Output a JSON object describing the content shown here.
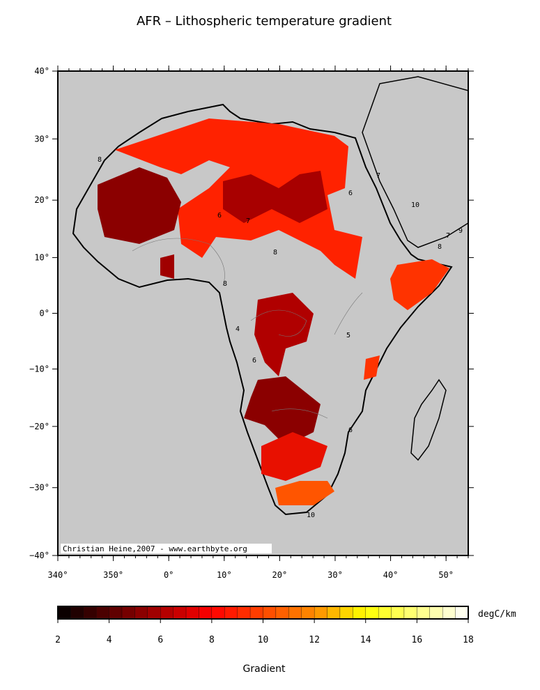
{
  "title": "AFR – Lithospheric temperature gradient",
  "map": {
    "lonlim": [
      340,
      54
    ],
    "latlim": [
      -40,
      40
    ],
    "lonticks": [
      {
        "value": 340,
        "label": "340°"
      },
      {
        "value": 350,
        "label": "350°"
      },
      {
        "value": 360,
        "label": "0°"
      },
      {
        "value": 370,
        "label": "10°"
      },
      {
        "value": 380,
        "label": "20°"
      },
      {
        "value": 390,
        "label": "30°"
      },
      {
        "value": 400,
        "label": "40°"
      },
      {
        "value": 410,
        "label": "50°"
      }
    ],
    "latticks": [
      {
        "value": 40,
        "label": "40°"
      },
      {
        "value": 30,
        "label": "30°"
      },
      {
        "value": 20,
        "label": "20°"
      },
      {
        "value": 10,
        "label": "10°"
      },
      {
        "value": 0,
        "label": "0°"
      },
      {
        "value": -10,
        "label": "−10°"
      },
      {
        "value": -20,
        "label": "−20°"
      },
      {
        "value": -30,
        "label": "−30°"
      },
      {
        "value": -40,
        "label": "−40°"
      }
    ],
    "credit": "Christian Heine,2007 - www.earthbyte.org",
    "contour_labels": [
      "8",
      "6",
      "7",
      "8",
      "8",
      "7",
      "10",
      "9",
      "7",
      "8",
      "6",
      "5",
      "4",
      "6",
      "6",
      "10"
    ]
  },
  "colorbar": {
    "range": [
      2,
      18
    ],
    "step": 0.5,
    "ticks": [
      2,
      4,
      6,
      8,
      10,
      12,
      14,
      16,
      18
    ],
    "unit": "degC/km",
    "label": "Gradient",
    "color_stops": [
      {
        "value": 2,
        "color": "#000000"
      },
      {
        "value": 5,
        "color": "#800000"
      },
      {
        "value": 8,
        "color": "#ff0000"
      },
      {
        "value": 12,
        "color": "#ff8c00"
      },
      {
        "value": 14,
        "color": "#ffff00"
      },
      {
        "value": 18,
        "color": "#ffffff"
      }
    ]
  }
}
